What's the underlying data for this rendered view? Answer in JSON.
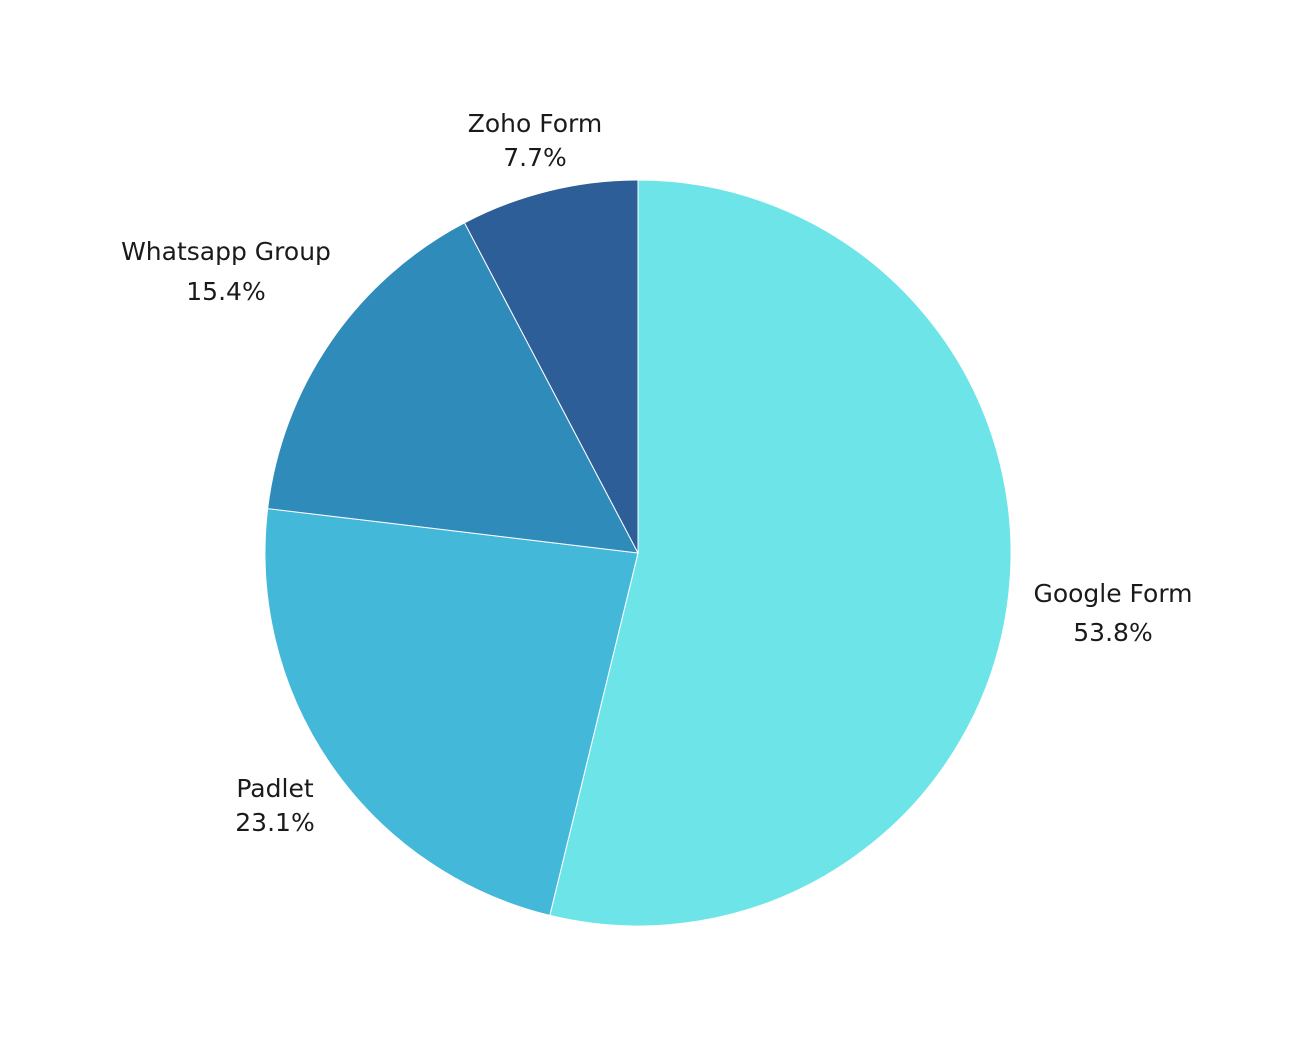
{
  "chart_data": {
    "type": "pie",
    "title": "",
    "start_angle": "12 o'clock",
    "direction": "clockwise",
    "legend": "none (direct labels)",
    "slices": [
      {
        "label": "Google Form",
        "value": 53.8,
        "value_label": "53.8%",
        "color": "#6de5e8"
      },
      {
        "label": "Padlet",
        "value": 23.1,
        "value_label": "23.1%",
        "color": "#44b8d8"
      },
      {
        "label": "Whatsapp Group",
        "value": 15.4,
        "value_label": "15.4%",
        "color": "#2e8bba"
      },
      {
        "label": "Zoho Form",
        "value": 7.7,
        "value_label": "7.7%",
        "color": "#2e5e98"
      }
    ]
  }
}
